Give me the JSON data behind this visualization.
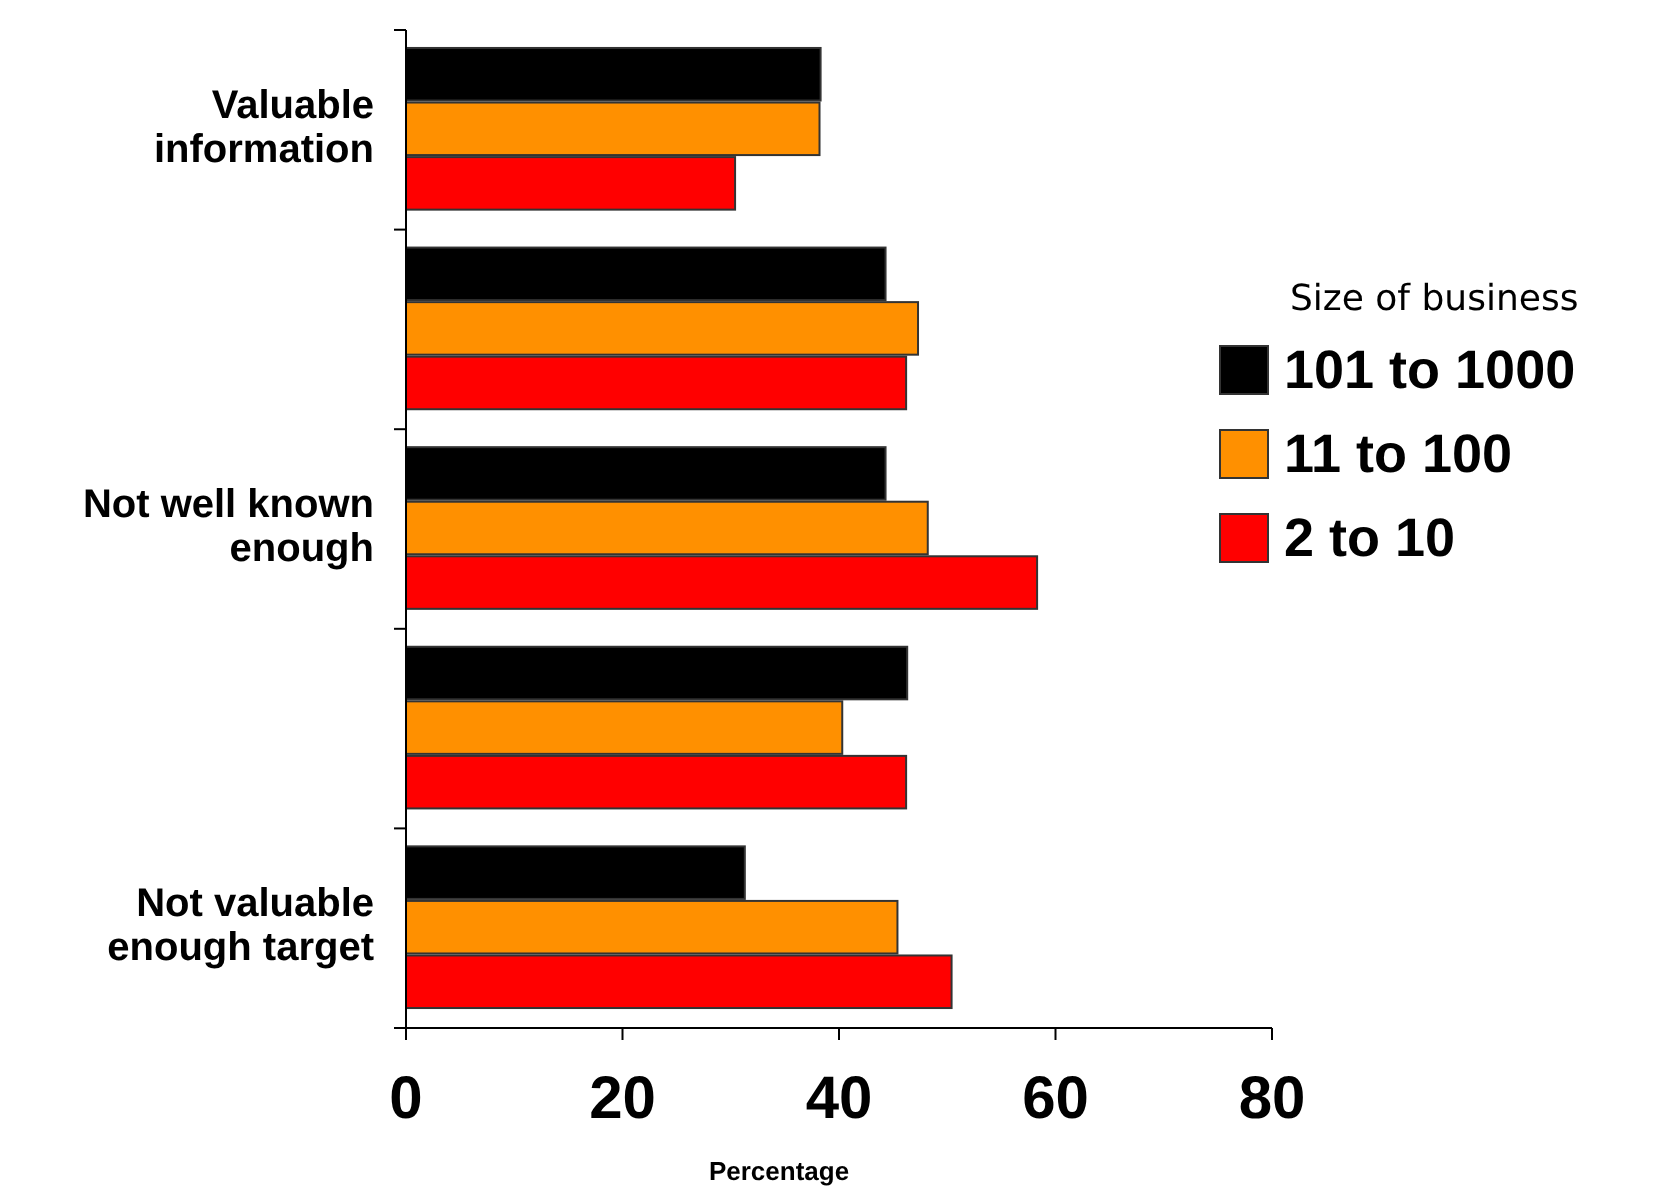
{
  "chart_data": {
    "type": "bar",
    "orientation": "horizontal",
    "xlabel": "Percentage",
    "legend_title": "Size of business",
    "legend": "right",
    "categories": [
      "Valuable information",
      null,
      "Not well known enough",
      null,
      "Not valuable enough target"
    ],
    "xlim": [
      0,
      80
    ],
    "xticks": [
      0,
      20,
      40,
      60,
      80
    ],
    "series": [
      {
        "name": "101 to 1000",
        "color": "#000000",
        "values": [
          38.3,
          44.3,
          44.3,
          46.3,
          31.3
        ]
      },
      {
        "name": "11 to 100",
        "color": "#ff9000",
        "values": [
          38.2,
          47.3,
          48.2,
          40.3,
          45.4
        ]
      },
      {
        "name": "2 to 10",
        "color": "#ff0000",
        "values": [
          30.4,
          46.2,
          58.3,
          46.2,
          50.4
        ]
      }
    ]
  }
}
